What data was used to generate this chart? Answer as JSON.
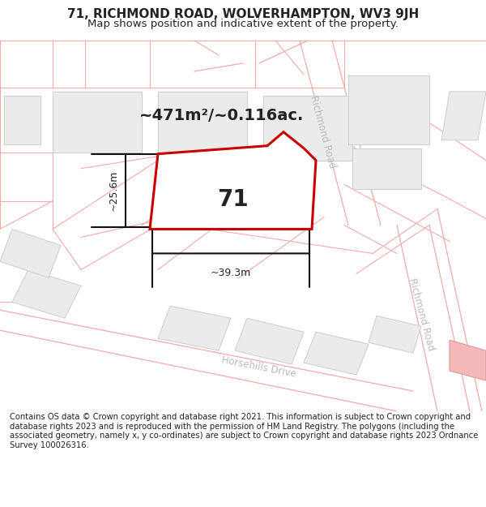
{
  "title_line1": "71, RICHMOND ROAD, WOLVERHAMPTON, WV3 9JH",
  "title_line2": "Map shows position and indicative extent of the property.",
  "footer_text": "Contains OS data © Crown copyright and database right 2021. This information is subject to Crown copyright and database rights 2023 and is reproduced with the permission of HM Land Registry. The polygons (including the associated geometry, namely x, y co-ordinates) are subject to Crown copyright and database rights 2023 Ordnance Survey 100026316.",
  "area_label": "~471m²/~0.116ac.",
  "number_label": "71",
  "width_label": "~39.3m",
  "height_label": "~25.6m",
  "background_color": "#ffffff",
  "map_background": "#ffffff",
  "building_fill": "#ebebeb",
  "building_edge": "#cccccc",
  "plot_line_color": "#f5aaaa",
  "highlight_fill": "#ffffff",
  "highlight_stroke": "#cc0000",
  "road_label_color": "#bbbbbb",
  "dim_line_color": "#111111",
  "text_color": "#222222",
  "title_fontsize": 11,
  "subtitle_fontsize": 9.5,
  "footer_fontsize": 7.2,
  "area_fontsize": 14,
  "num_fontsize": 20,
  "dim_fontsize": 9,
  "road_fontsize": 8.5
}
